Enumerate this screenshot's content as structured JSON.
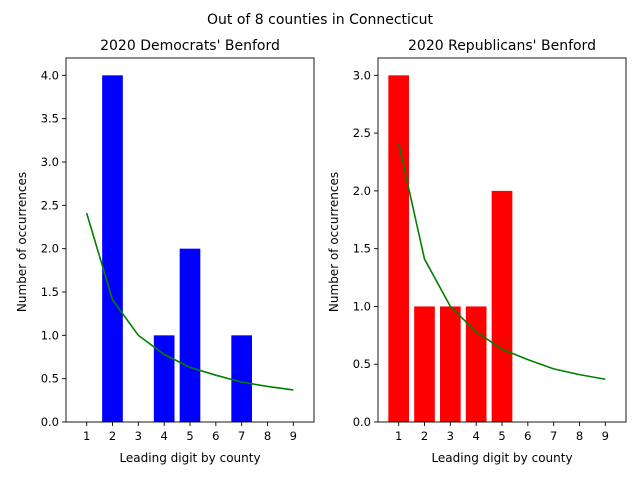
{
  "suptitle": "Out of 8 counties in Connecticut",
  "chart_data": [
    {
      "type": "bar",
      "title": "2020 Democrats' Benford",
      "xlabel": "Leading digit by county",
      "ylabel": "Number of occurrences",
      "ylim": [
        0,
        4.2
      ],
      "xlim": [
        0.2,
        9.8
      ],
      "yticks": [
        0.0,
        0.5,
        1.0,
        1.5,
        2.0,
        2.5,
        3.0,
        3.5,
        4.0
      ],
      "yticklabels": [
        "0.0",
        "0.5",
        "1.0",
        "1.5",
        "2.0",
        "2.5",
        "3.0",
        "3.5",
        "4.0"
      ],
      "xticks": [
        1,
        2,
        3,
        4,
        5,
        6,
        7,
        8,
        9
      ],
      "xticklabels": [
        "1",
        "2",
        "3",
        "4",
        "5",
        "6",
        "7",
        "8",
        "9"
      ],
      "bar_color": "#0000ff",
      "line_color": "#008000",
      "grid": false,
      "series": [
        {
          "type": "bar",
          "x": [
            1,
            2,
            3,
            4,
            5,
            6,
            7,
            8,
            9
          ],
          "values": [
            0,
            4,
            0,
            1,
            2,
            0,
            1,
            0,
            0
          ]
        },
        {
          "type": "line",
          "x": [
            1,
            2,
            3,
            4,
            5,
            6,
            7,
            8,
            9
          ],
          "values": [
            2.41,
            1.41,
            1.0,
            0.78,
            0.63,
            0.54,
            0.46,
            0.41,
            0.37
          ]
        }
      ]
    },
    {
      "type": "bar",
      "title": "2020 Republicans' Benford",
      "xlabel": "Leading digit by county",
      "ylabel": "Number of occurrences",
      "ylim": [
        0,
        3.15
      ],
      "xlim": [
        0.2,
        9.8
      ],
      "yticks": [
        0.0,
        0.5,
        1.0,
        1.5,
        2.0,
        2.5,
        3.0
      ],
      "yticklabels": [
        "0.0",
        "0.5",
        "1.0",
        "1.5",
        "2.0",
        "2.5",
        "3.0"
      ],
      "xticks": [
        1,
        2,
        3,
        4,
        5,
        6,
        7,
        8,
        9
      ],
      "xticklabels": [
        "1",
        "2",
        "3",
        "4",
        "5",
        "6",
        "7",
        "8",
        "9"
      ],
      "bar_color": "#ff0000",
      "line_color": "#008000",
      "grid": false,
      "series": [
        {
          "type": "bar",
          "x": [
            1,
            2,
            3,
            4,
            5,
            6,
            7,
            8,
            9
          ],
          "values": [
            3,
            1,
            1,
            1,
            2,
            0,
            0,
            0,
            0
          ]
        },
        {
          "type": "line",
          "x": [
            1,
            2,
            3,
            4,
            5,
            6,
            7,
            8,
            9
          ],
          "values": [
            2.41,
            1.41,
            1.0,
            0.78,
            0.63,
            0.54,
            0.46,
            0.41,
            0.37
          ]
        }
      ]
    }
  ]
}
